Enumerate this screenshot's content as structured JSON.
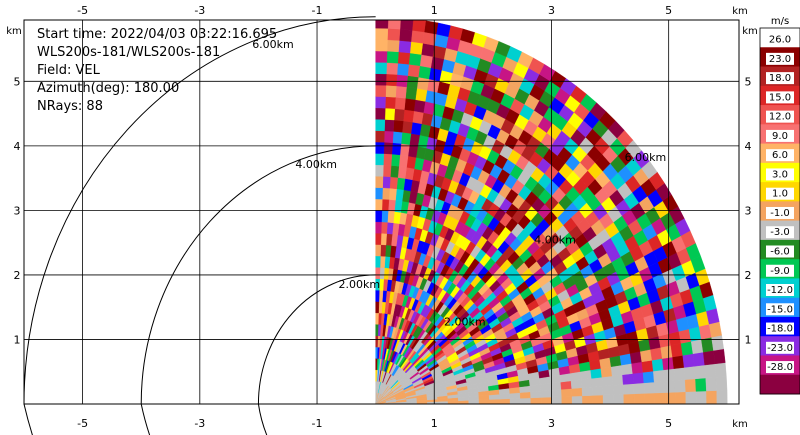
{
  "info": {
    "lines": [
      "Start time: 2022/04/03 03:22:16.695",
      "WLS200s-181/WLS200s-181",
      "Field: VEL",
      "Azimuth(deg): 180.00",
      "NRays: 88"
    ]
  },
  "chart_data": {
    "type": "heatmap",
    "x_unit": "km",
    "y_unit": "km",
    "xlim": [
      -6.0,
      6.2
    ],
    "ylim": [
      0.0,
      5.95
    ],
    "x_ticks": [
      "-5",
      "-3",
      "-1",
      "1",
      "3",
      "5"
    ],
    "y_ticks": [
      "1",
      "2",
      "3",
      "4",
      "5"
    ],
    "range_rings": [
      "2.00km",
      "4.00km",
      "6.00km"
    ],
    "grid": true,
    "field": "VEL",
    "colorbar": {
      "title": "m/s",
      "ticks": [
        "26.0",
        "23.0",
        "18.0",
        "15.0",
        "12.0",
        "9.0",
        "6.0",
        "3.0",
        "1.0",
        "-1.0",
        "-3.0",
        "-6.0",
        "-9.0",
        "-12.0",
        "-15.0",
        "-18.0",
        "-23.0",
        "-28.0"
      ],
      "colors": [
        "#ffffff",
        "#8b0000",
        "#b22222",
        "#dc2626",
        "#ef5350",
        "#f87171",
        "#ffb366",
        "#ffff00",
        "#ffd700",
        "#f4a460",
        "#c0c0c0",
        "#228b22",
        "#00c853",
        "#00d0d0",
        "#1e90ff",
        "#0000ff",
        "#8a2be2",
        "#c71585",
        "#8b0040"
      ]
    }
  }
}
